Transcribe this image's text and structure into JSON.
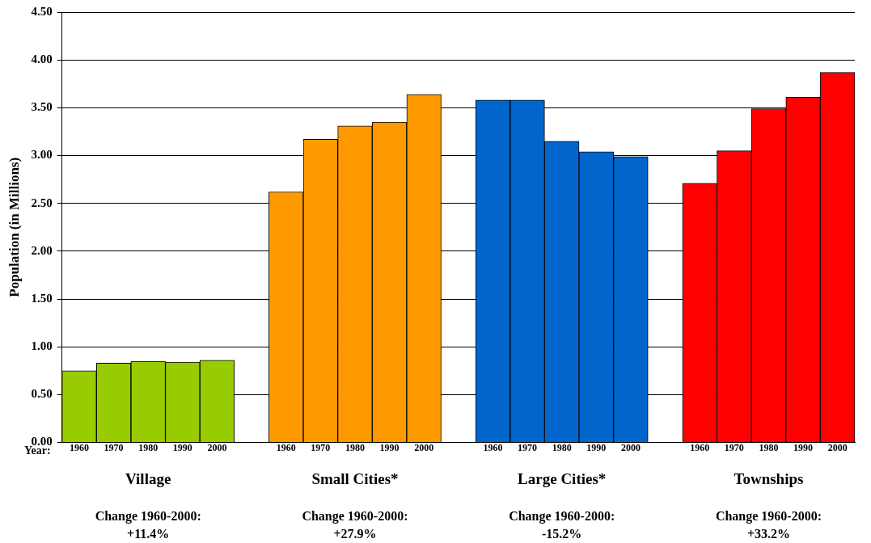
{
  "chart_data": {
    "type": "bar",
    "ylabel": "Population (in Millions)",
    "xlabel": "Year:",
    "categories": [
      "1960",
      "1970",
      "1980",
      "1990",
      "2000",
      null,
      "1960",
      "1970",
      "1980",
      "1990",
      "2000",
      null,
      "1960",
      "1970",
      "1980",
      "1990",
      "2000",
      null,
      "1960",
      "1970",
      "1980",
      "1990",
      "2000"
    ],
    "values": [
      0.75,
      0.83,
      0.85,
      0.84,
      0.86,
      null,
      2.62,
      3.17,
      3.31,
      3.35,
      3.64,
      null,
      3.58,
      3.58,
      3.15,
      3.04,
      2.99,
      null,
      2.71,
      3.05,
      3.49,
      3.61,
      3.87
    ],
    "colors": [
      "#99cc00",
      "#99cc00",
      "#99cc00",
      "#99cc00",
      "#99cc00",
      null,
      "#ff9900",
      "#ff9900",
      "#ff9900",
      "#ff9900",
      "#ff9900",
      null,
      "#0066cc",
      "#0066cc",
      "#0066cc",
      "#0066cc",
      "#0066cc",
      null,
      "#ff0000",
      "#ff0000",
      "#ff0000",
      "#ff0000",
      "#ff0000"
    ],
    "ylim": [
      0,
      4.5
    ],
    "yticks": [
      {
        "value": 0,
        "label": "0.00"
      },
      {
        "value": 0.5,
        "label": "0.50"
      },
      {
        "value": 1,
        "label": "1.00"
      },
      {
        "value": 1.5,
        "label": "1.50"
      },
      {
        "value": 2,
        "label": "2.00"
      },
      {
        "value": 2.5,
        "label": "2.50"
      },
      {
        "value": 3,
        "label": "3.00"
      },
      {
        "value": 3.5,
        "label": "3.50"
      },
      {
        "value": 4,
        "label": "4.00"
      },
      {
        "value": 4.5,
        "label": "4.50"
      }
    ],
    "grid": "y",
    "legend": false,
    "annotations": [
      "Village",
      "Small Cities*",
      "Large Cities*",
      "Townships",
      "Change 1960-2000:\n+11.4%",
      "Change 1960-2000:\n+27.9%",
      "Change 1960-2000:\n-15.2%",
      "Change 1960-2000:\n+33.2%"
    ]
  }
}
